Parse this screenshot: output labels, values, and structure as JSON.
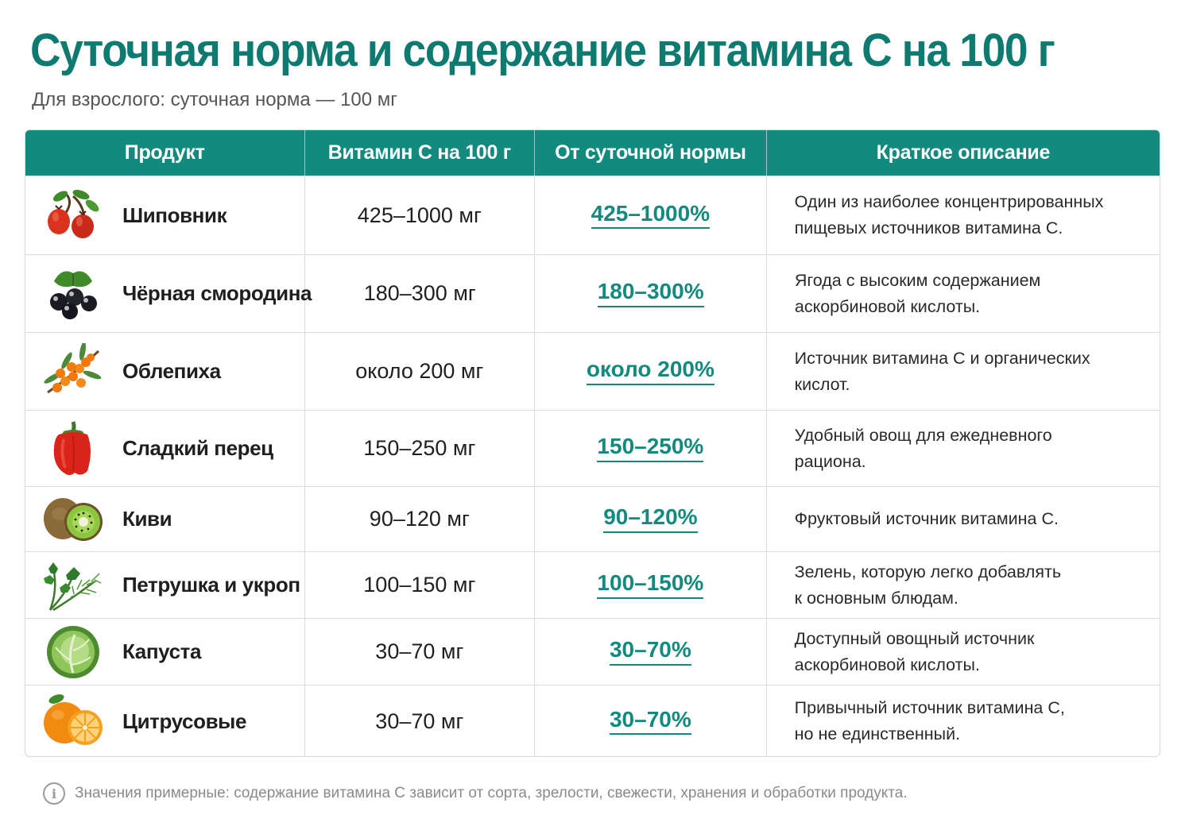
{
  "title": "Суточная норма и содержание витамина С на 100 г",
  "subtitle": "Для взрослого: суточная норма — 100 мг",
  "columns": [
    "Продукт",
    "Витамин С на 100 г",
    "От суточной нормы",
    "Краткое описание"
  ],
  "rows": [
    {
      "icon": "rosehip-icon",
      "product": "Шиповник",
      "vitamin": "425–1000 мг",
      "percent": "425–1000%",
      "description": "Один из наиболее концентрированных\nпищевых источников витамина С."
    },
    {
      "icon": "blackcurrant-icon",
      "product": "Чёрная смородина",
      "vitamin": "180–300 мг",
      "percent": "180–300%",
      "description": "Ягода с высоким содержанием\nаскорбиновой кислоты."
    },
    {
      "icon": "sea-buckthorn-icon",
      "product": "Облепиха",
      "vitamin": "около 200 мг",
      "percent": "около 200%",
      "description": "Источник витамина С и органических\nкислот."
    },
    {
      "icon": "bell-pepper-icon",
      "product": "Сладкий перец",
      "vitamin": "150–250 мг",
      "percent": "150–250%",
      "description": "Удобный овощ для ежедневного\nрациона."
    },
    {
      "icon": "kiwi-icon",
      "product": "Киви",
      "vitamin": "90–120 мг",
      "percent": "90–120%",
      "description": "Фруктовый источник витамина С."
    },
    {
      "icon": "herbs-icon",
      "product": "Петрушка и укроп",
      "vitamin": "100–150 мг",
      "percent": "100–150%",
      "description": "Зелень, которую легко добавлять\nк основным блюдам."
    },
    {
      "icon": "cabbage-icon",
      "product": "Капуста",
      "vitamin": "30–70 мг",
      "percent": "30–70%",
      "description": "Доступный овощный источник\nаскорбиновой кислоты."
    },
    {
      "icon": "citrus-icon",
      "product": "Цитрусовые",
      "vitamin": "30–70 мг",
      "percent": "30–70%",
      "description": "Привычный источник витамина С,\nно не единственный."
    }
  ],
  "footnote": "Значения примерные: содержание витамина С зависит от сорта, зрелости, свежести, хранения и обработки продукта.",
  "colors": {
    "accent": "#138a7e",
    "title": "#0e7a70",
    "header_text": "#ffffff"
  }
}
